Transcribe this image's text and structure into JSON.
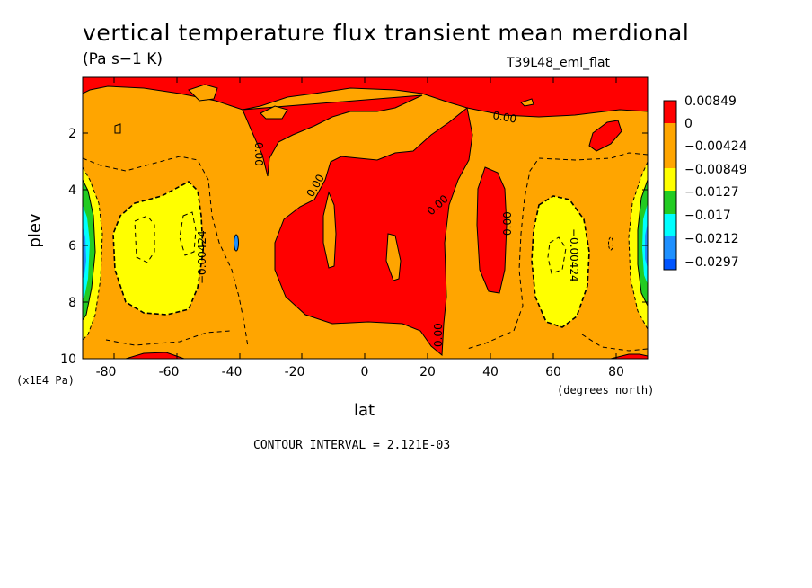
{
  "chart_data": {
    "type": "heatmap",
    "title": "vertical temperature flux transient mean merdional",
    "units": "(Pa s−1 K)",
    "dataset": "T39L48_eml_flat",
    "xlabel": "lat",
    "x_units": "(degrees_north)",
    "ylabel": "plev",
    "y_units": "(x1E4 Pa)",
    "xlim": [
      -90,
      90
    ],
    "ylim": [
      10,
      0
    ],
    "x_ticks": [
      "-80",
      "-60",
      "-40",
      "-20",
      "0",
      "20",
      "40",
      "60",
      "80"
    ],
    "y_ticks": [
      "2",
      "4",
      "6",
      "8",
      "10"
    ],
    "legend": [
      {
        "label": "0.00849",
        "color": "#ff0000"
      },
      {
        "label": "0",
        "color": "#ffa500"
      },
      {
        "label": "−0.00424",
        "color": "#ffa500"
      },
      {
        "label": "−0.00849",
        "color": "#ffff00"
      },
      {
        "label": "−0.0127",
        "color": "#22cc22"
      },
      {
        "label": "−0.017",
        "color": "#00ffff"
      },
      {
        "label": "−0.0212",
        "color": "#1e90ff"
      },
      {
        "label": "−0.0297",
        "color": "#0055ff"
      }
    ],
    "contour_labels": [
      "0.00",
      "0.00",
      "0.00",
      "0.00",
      "0.00",
      "0.00",
      "−0.00424",
      "−0.00424"
    ],
    "footer": "CONTOUR INTERVAL = 2.121E-03"
  }
}
